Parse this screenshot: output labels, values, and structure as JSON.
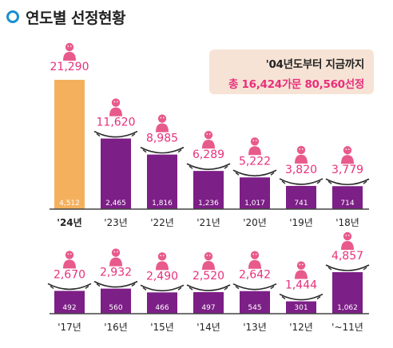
{
  "title": "연도별 선정현황",
  "summary": {
    "line1": "'04년도부터 지금까지",
    "line2": "총 16,424가문 80,560선정"
  },
  "colors": {
    "accent": "#1a8fd0",
    "highlight_bar": "#f5b05e",
    "bar": "#7c1f86",
    "value_text": "#e8307c",
    "person_icon": "#e85a8c"
  },
  "chart_data": [
    {
      "type": "bar",
      "categories": [
        "'24년",
        "'23년",
        "'22년",
        "'21년",
        "'20년",
        "'19년",
        "'18년"
      ],
      "series": [
        {
          "values": [
            21290,
            11620,
            8985,
            6289,
            5222,
            3820,
            3779
          ]
        },
        {
          "values": [
            4512,
            2465,
            1816,
            1236,
            1017,
            741,
            714
          ]
        }
      ],
      "value_labels": [
        "21,290",
        "11,620",
        "8,985",
        "6,289",
        "5,222",
        "3,820",
        "3,779"
      ],
      "count_labels": [
        "4,512",
        "2,465",
        "1,816",
        "1,236",
        "1,017",
        "741",
        "714"
      ],
      "highlight_index": 0
    },
    {
      "type": "bar",
      "categories": [
        "'17년",
        "'16년",
        "'15년",
        "'14년",
        "'13년",
        "'12년",
        "'~11년"
      ],
      "series": [
        {
          "values": [
            2670,
            2932,
            2490,
            2520,
            2642,
            1444,
            4857
          ]
        },
        {
          "values": [
            492,
            560,
            466,
            497,
            545,
            301,
            1062
          ]
        }
      ],
      "value_labels": [
        "2,670",
        "2,932",
        "2,490",
        "2,520",
        "2,642",
        "1,444",
        "4,857"
      ],
      "count_labels": [
        "492",
        "560",
        "466",
        "497",
        "545",
        "301",
        "1,062"
      ],
      "highlight_index": -1
    }
  ]
}
